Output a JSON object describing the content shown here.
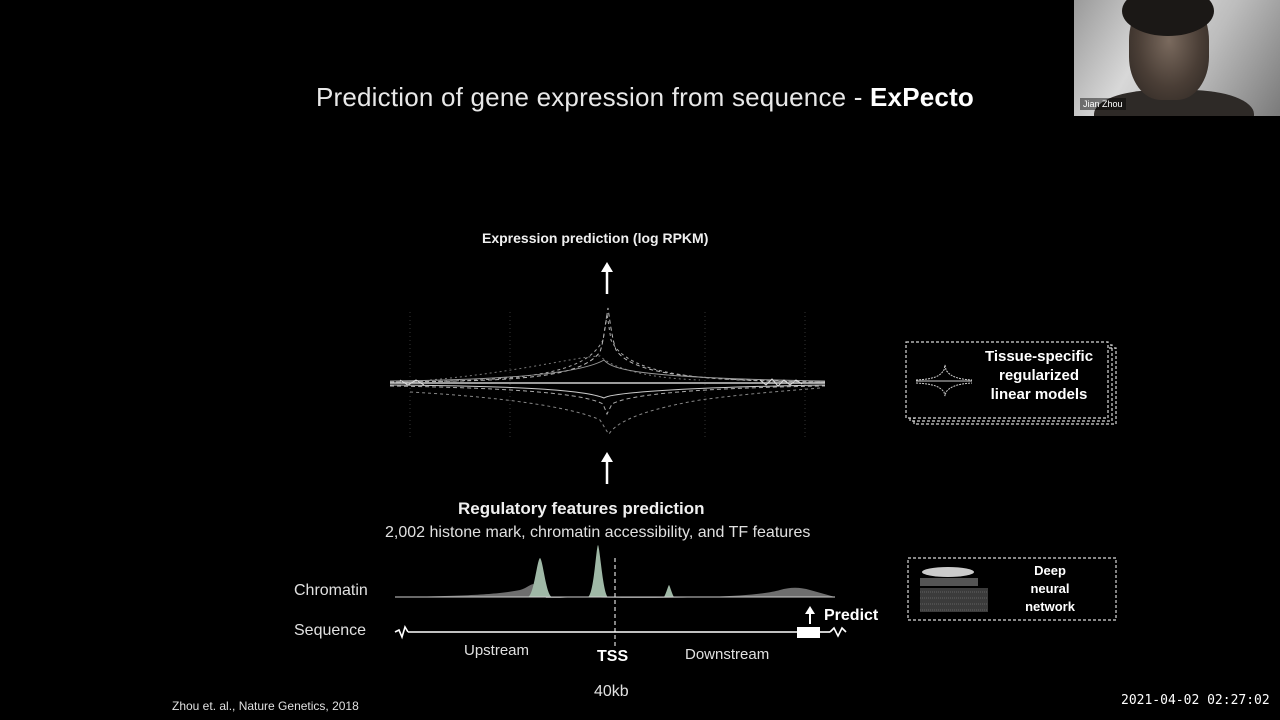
{
  "slide": {
    "title_plain": "Prediction of gene expression from sequence - ",
    "title_bold": "ExPecto",
    "expression_label": "Expression prediction (log RPKM)",
    "regulatory_title": "Regulatory features prediction",
    "regulatory_subtitle": "2,002 histone mark, chromatin accessibility, and TF features",
    "chromatin_label": "Chromatin",
    "sequence_label": "Sequence",
    "upstream_label": "Upstream",
    "tss_label": "TSS",
    "downstream_label": "Downstream",
    "span_label": "40kb",
    "predict_label": "Predict",
    "tissue_box": {
      "line1": "Tissue-specific",
      "line2": "regularized",
      "line3": "linear models"
    },
    "dnn_box": {
      "line1": "Deep",
      "line2": "neural",
      "line3": "network"
    },
    "citation": "Zhou et. al., Nature Genetics, 2018"
  },
  "video": {
    "participant_name": "Jian Zhou"
  },
  "timestamp": "2021-04-02 02:27:02",
  "colors": {
    "background": "#000000",
    "text": "#ffffff",
    "peak_fill": "#9fb8a6",
    "shadow_fill": "#6e6e6e",
    "dashed_border": "#d8d8d8"
  }
}
